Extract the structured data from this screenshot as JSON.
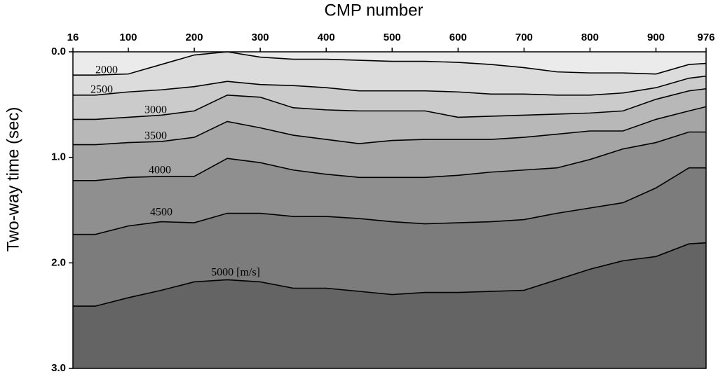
{
  "chart_data": {
    "type": "contour",
    "title": "CMP number",
    "y_label": "Two-way time (sec)",
    "x": [
      16,
      50,
      100,
      150,
      200,
      250,
      300,
      350,
      400,
      450,
      500,
      550,
      600,
      650,
      700,
      750,
      800,
      850,
      900,
      950,
      976
    ],
    "series": [
      {
        "name": "2000",
        "color": "#000000",
        "values": [
          0.22,
          0.22,
          0.21,
          0.12,
          0.03,
          0.0,
          0.05,
          0.07,
          0.07,
          0.08,
          0.09,
          0.09,
          0.1,
          0.12,
          0.15,
          0.19,
          0.2,
          0.2,
          0.21,
          0.12,
          0.11
        ]
      },
      {
        "name": "2500",
        "color": "#000000",
        "values": [
          0.41,
          0.41,
          0.38,
          0.36,
          0.33,
          0.28,
          0.31,
          0.32,
          0.34,
          0.37,
          0.37,
          0.37,
          0.38,
          0.4,
          0.4,
          0.41,
          0.41,
          0.39,
          0.34,
          0.25,
          0.23
        ]
      },
      {
        "name": "3000",
        "color": "#000000",
        "values": [
          0.64,
          0.64,
          0.62,
          0.6,
          0.56,
          0.41,
          0.43,
          0.53,
          0.55,
          0.56,
          0.56,
          0.56,
          0.62,
          0.61,
          0.6,
          0.59,
          0.58,
          0.56,
          0.45,
          0.37,
          0.35
        ]
      },
      {
        "name": "3500",
        "color": "#000000",
        "values": [
          0.88,
          0.88,
          0.86,
          0.85,
          0.81,
          0.66,
          0.72,
          0.79,
          0.83,
          0.87,
          0.84,
          0.83,
          0.83,
          0.83,
          0.81,
          0.78,
          0.75,
          0.75,
          0.64,
          0.56,
          0.52
        ]
      },
      {
        "name": "4000",
        "color": "#000000",
        "values": [
          1.22,
          1.22,
          1.19,
          1.18,
          1.18,
          1.01,
          1.05,
          1.12,
          1.16,
          1.19,
          1.19,
          1.19,
          1.17,
          1.14,
          1.12,
          1.1,
          1.02,
          0.92,
          0.86,
          0.76,
          0.76
        ]
      },
      {
        "name": "4500",
        "color": "#000000",
        "values": [
          1.73,
          1.73,
          1.65,
          1.61,
          1.62,
          1.53,
          1.53,
          1.56,
          1.56,
          1.58,
          1.61,
          1.63,
          1.62,
          1.61,
          1.59,
          1.53,
          1.48,
          1.43,
          1.29,
          1.1,
          1.1
        ]
      },
      {
        "name": "5000 [m/s]",
        "color": "#000000",
        "values": [
          2.41,
          2.41,
          2.33,
          2.26,
          2.18,
          2.16,
          2.18,
          2.24,
          2.24,
          2.27,
          2.3,
          2.28,
          2.28,
          2.27,
          2.26,
          2.16,
          2.06,
          1.98,
          1.94,
          1.82,
          1.81
        ]
      }
    ],
    "fill_colors": [
      "#ebebeb",
      "#dcdcdc",
      "#cbcbcb",
      "#b8b8b8",
      "#a5a5a5",
      "#8f8f8f",
      "#7c7c7c",
      "#646464"
    ],
    "xlim": [
      16,
      976
    ],
    "xticks": [
      16,
      100,
      200,
      300,
      400,
      500,
      600,
      700,
      800,
      900,
      976
    ],
    "ylim": [
      0,
      3
    ],
    "yticks": [
      {
        "value": 0,
        "label": "0.0"
      },
      {
        "value": 1,
        "label": "1.0"
      },
      {
        "value": 2,
        "label": "2.0"
      },
      {
        "value": 3,
        "label": "3.0"
      }
    ],
    "y_inverted": true
  }
}
